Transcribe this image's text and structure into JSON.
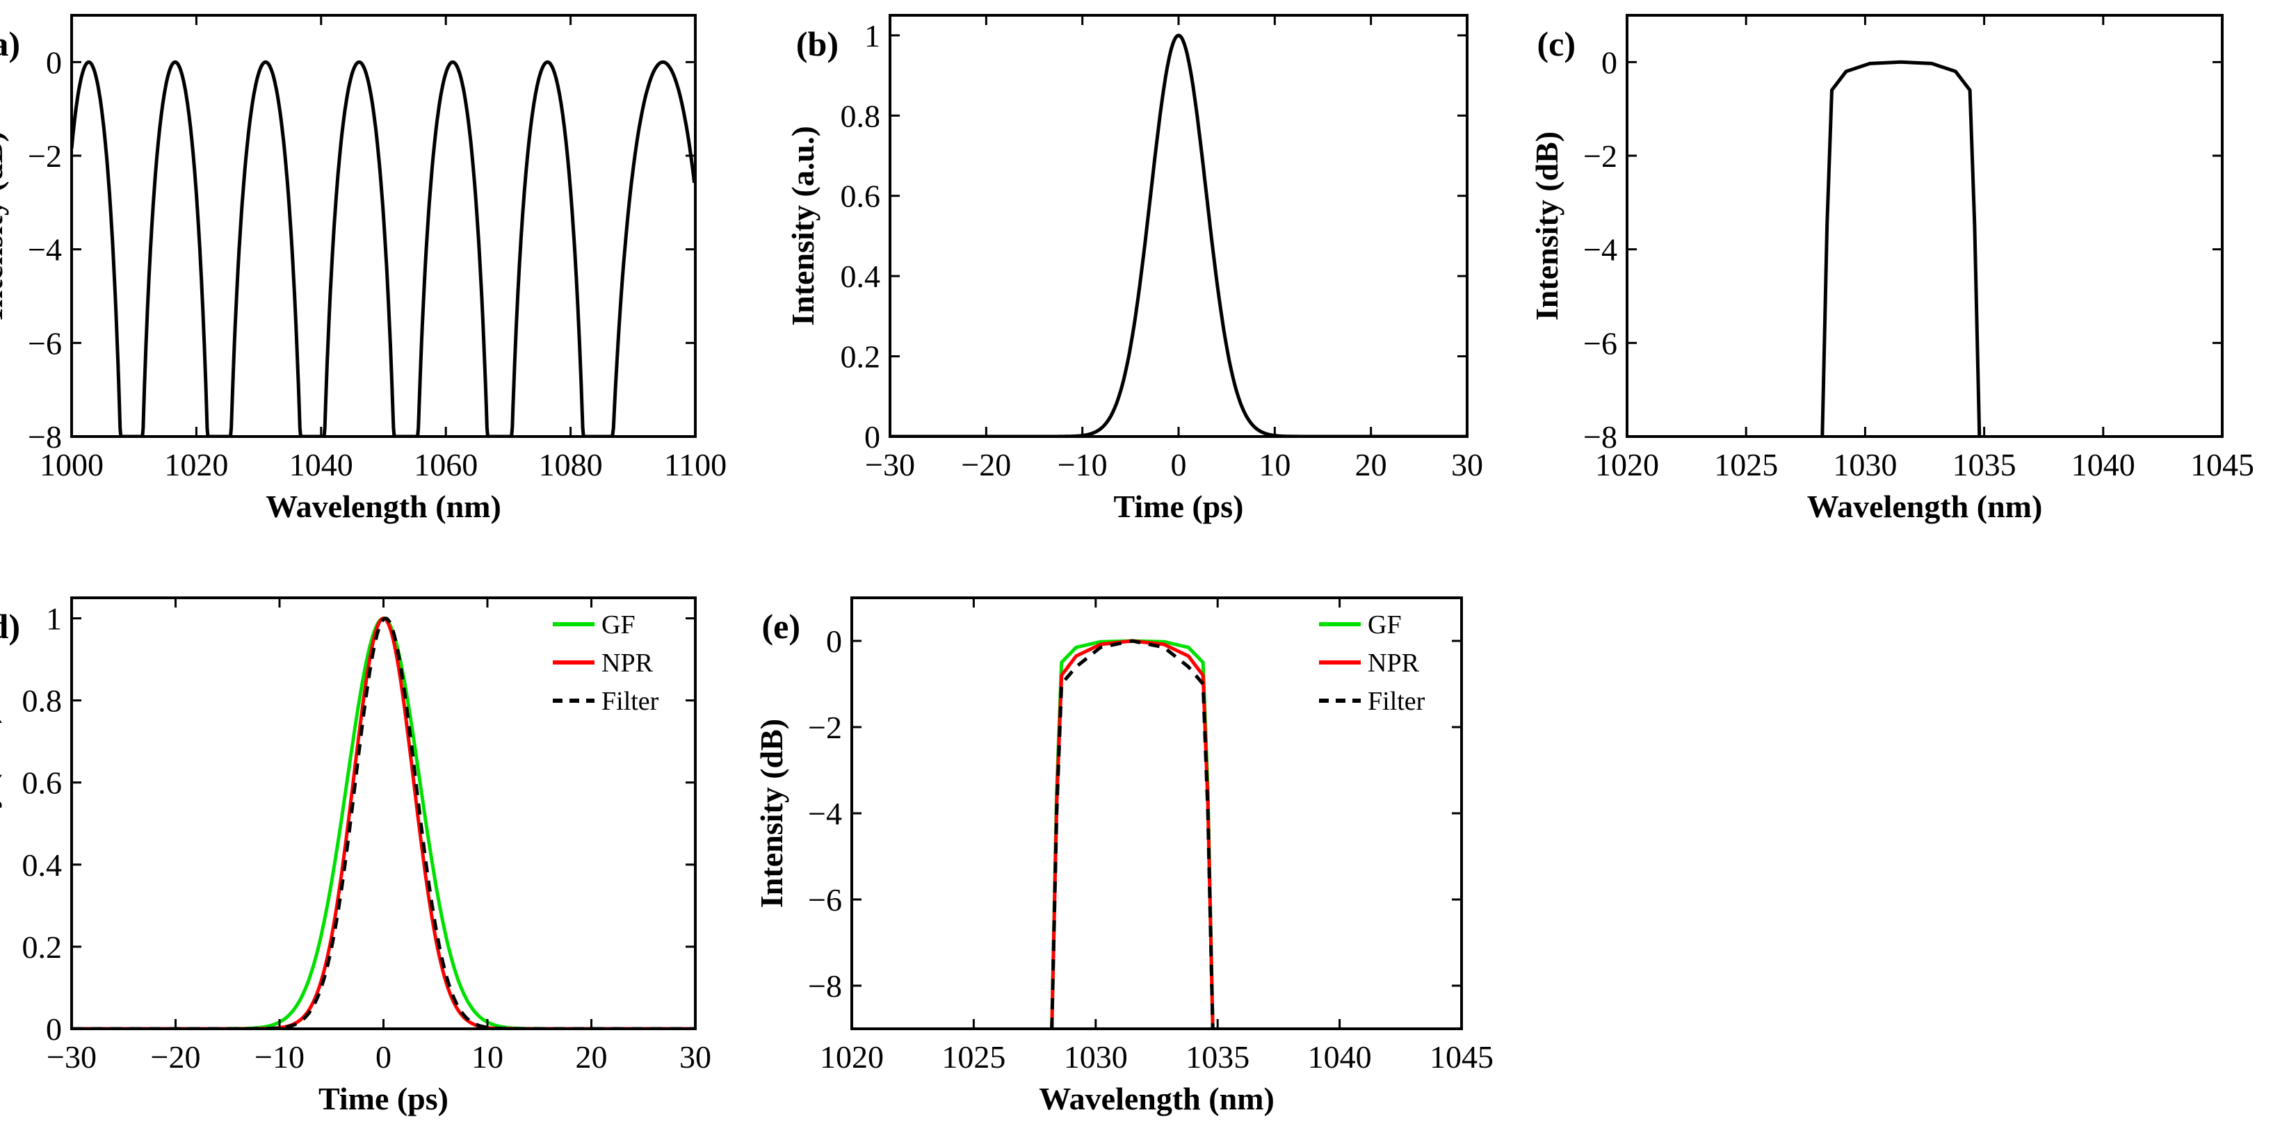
{
  "chart_data": [
    {
      "id": "a",
      "panel_label": "(a)",
      "type": "line",
      "xlabel": "Wavelength (nm)",
      "ylabel": "Intensity (dB)",
      "xlim": [
        1000,
        1100
      ],
      "ylim": [
        -8,
        1
      ],
      "xticks": [
        "1000",
        "1020",
        "1040",
        "1060",
        "1080",
        "1100"
      ],
      "yticks": [
        "−8",
        "−6",
        "−4",
        "−2",
        "0"
      ],
      "xtick_values": [
        1000,
        1020,
        1040,
        1060,
        1080,
        1100
      ],
      "ytick_values": [
        -8,
        -6,
        -4,
        -2,
        0
      ],
      "series": [
        {
          "kind": "comb",
          "color": "#000000",
          "peaks": [
            1002.5,
            1017,
            1031,
            1046,
            1061.5,
            1077,
            1092
          ],
          "nulls": [
            1009.6,
            1023.6,
            1038.6,
            1053.6,
            1068.6,
            1084
          ]
        }
      ]
    },
    {
      "id": "b",
      "panel_label": "(b)",
      "type": "line",
      "xlabel": "Time (ps)",
      "ylabel": "Intensity (a.u.)",
      "xlim": [
        -30,
        30
      ],
      "ylim": [
        0,
        1.05
      ],
      "xticks": [
        "−30",
        "−20",
        "−10",
        "0",
        "10",
        "20",
        "30"
      ],
      "yticks": [
        "0",
        "0.2",
        "0.4",
        "0.6",
        "0.8",
        "1"
      ],
      "xtick_values": [
        -30,
        -20,
        -10,
        0,
        10,
        20,
        30
      ],
      "ytick_values": [
        0,
        0.2,
        0.4,
        0.6,
        0.8,
        1
      ],
      "series": [
        {
          "kind": "gaussian",
          "color": "#000000",
          "center": 0,
          "fwhm": 6.8,
          "peak": 1
        }
      ]
    },
    {
      "id": "c",
      "panel_label": "(c)",
      "type": "line",
      "xlabel": "Wavelength (nm)",
      "ylabel": "Intensity (dB)",
      "xlim": [
        1020,
        1045
      ],
      "ylim": [
        -8,
        1
      ],
      "xticks": [
        "1020",
        "1025",
        "1030",
        "1035",
        "1040",
        "1045"
      ],
      "yticks": [
        "−8",
        "−6",
        "−4",
        "−2",
        "0"
      ],
      "xtick_values": [
        1020,
        1025,
        1030,
        1035,
        1040,
        1045
      ],
      "ytick_values": [
        -8,
        -6,
        -4,
        -2,
        0
      ],
      "series": [
        {
          "kind": "polyline",
          "color": "#000000",
          "dashed": false,
          "x": [
            1028.2,
            1028.4,
            1028.6,
            1029.2,
            1030.2,
            1031.5,
            1032.8,
            1033.8,
            1034.4,
            1034.6,
            1034.8
          ],
          "y": [
            -8,
            -3.5,
            -0.6,
            -0.2,
            -0.03,
            0,
            -0.03,
            -0.2,
            -0.6,
            -3.5,
            -8
          ]
        }
      ]
    },
    {
      "id": "d",
      "panel_label": "(d)",
      "type": "line",
      "xlabel": "Time (ps)",
      "ylabel": "Intensity (a.u.)",
      "xlim": [
        -30,
        30
      ],
      "ylim": [
        0,
        1.05
      ],
      "xticks": [
        "−30",
        "−20",
        "−10",
        "0",
        "10",
        "20",
        "30"
      ],
      "yticks": [
        "0",
        "0.2",
        "0.4",
        "0.6",
        "0.8",
        "1"
      ],
      "xtick_values": [
        -30,
        -20,
        -10,
        0,
        10,
        20,
        30
      ],
      "ytick_values": [
        0,
        0.2,
        0.4,
        0.6,
        0.8,
        1
      ],
      "legend": [
        "GF",
        "NPR",
        "Filter"
      ],
      "legend_position": "top-right",
      "series": [
        {
          "name": "GF",
          "kind": "gaussian",
          "color": "#00e000",
          "center": 0,
          "fwhm": 8.2,
          "peak": 1
        },
        {
          "name": "NPR",
          "kind": "gaussian",
          "color": "#ff0000",
          "center": 0,
          "fwhm": 6.8,
          "peak": 1
        },
        {
          "name": "Filter",
          "kind": "gaussian",
          "color": "#000000",
          "dashed": true,
          "center": 0.2,
          "fwhm": 6.8,
          "peak": 1
        }
      ]
    },
    {
      "id": "e",
      "panel_label": "(e)",
      "type": "line",
      "xlabel": "Wavelength (nm)",
      "ylabel": "Intensity (dB)",
      "xlim": [
        1020,
        1045
      ],
      "ylim": [
        -9,
        1
      ],
      "xticks": [
        "1020",
        "1025",
        "1030",
        "1035",
        "1040",
        "1045"
      ],
      "yticks": [
        "−8",
        "−6",
        "−4",
        "−2",
        "0"
      ],
      "xtick_values": [
        1020,
        1025,
        1030,
        1035,
        1040,
        1045
      ],
      "ytick_values": [
        -8,
        -6,
        -4,
        -2,
        0
      ],
      "legend": [
        "GF",
        "NPR",
        "Filter"
      ],
      "legend_position": "top-right",
      "series": [
        {
          "name": "GF",
          "kind": "polyline",
          "color": "#00e000",
          "dashed": false,
          "x": [
            1028.2,
            1028.4,
            1028.6,
            1029.2,
            1030.2,
            1031.5,
            1032.8,
            1033.8,
            1034.4,
            1034.6,
            1034.8
          ],
          "y": [
            -9,
            -3.5,
            -0.5,
            -0.15,
            -0.02,
            0,
            -0.02,
            -0.15,
            -0.5,
            -3.5,
            -9
          ]
        },
        {
          "name": "NPR",
          "kind": "polyline",
          "color": "#ff0000",
          "dashed": false,
          "x": [
            1028.2,
            1028.4,
            1028.6,
            1029.2,
            1030.2,
            1031.5,
            1032.8,
            1033.8,
            1034.4,
            1034.6,
            1034.8
          ],
          "y": [
            -9,
            -3.8,
            -0.8,
            -0.35,
            -0.08,
            0,
            -0.08,
            -0.35,
            -0.8,
            -3.8,
            -9
          ]
        },
        {
          "name": "Filter",
          "kind": "polyline",
          "color": "#000000",
          "dashed": true,
          "x": [
            1028.2,
            1028.4,
            1028.6,
            1029.2,
            1030.2,
            1031.5,
            1032.8,
            1033.8,
            1034.4,
            1034.6,
            1034.8
          ],
          "y": [
            -9,
            -4,
            -1.0,
            -0.6,
            -0.15,
            0,
            -0.15,
            -0.6,
            -1.0,
            -4,
            -9
          ]
        }
      ]
    }
  ]
}
